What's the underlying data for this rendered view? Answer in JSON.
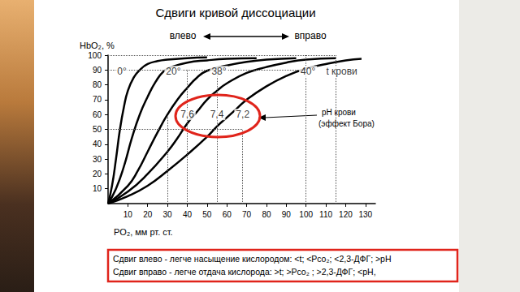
{
  "chart_data": {
    "type": "line",
    "title": "Сдвиги кривой диссоциации",
    "x_label": "PO₂, мм рт. ст.",
    "y_label": "HbO₂, %",
    "xlim": [
      0,
      135
    ],
    "xticks": [
      10,
      20,
      30,
      40,
      50,
      60,
      70,
      80,
      90,
      100,
      110,
      120,
      130
    ],
    "ylim": [
      0,
      100
    ],
    "yticks": [
      10,
      20,
      30,
      40,
      50,
      60,
      70,
      80,
      90,
      100
    ],
    "grid": false,
    "series": [
      {
        "color": "#000000",
        "x": [
          0,
          2,
          4,
          6,
          8,
          10,
          13,
          16,
          20,
          25,
          30,
          40,
          50
        ],
        "values": [
          0,
          12,
          30,
          50,
          65,
          76,
          85,
          90,
          94,
          96,
          97,
          98,
          98.5
        ]
      },
      {
        "color": "#000000",
        "x": [
          0,
          4,
          8,
          12,
          16,
          20,
          24,
          28,
          32,
          40,
          50,
          60,
          75
        ],
        "values": [
          0,
          10,
          25,
          44,
          60,
          72,
          82,
          89,
          92,
          95,
          96.5,
          97.5,
          98
        ]
      },
      {
        "color": "#000000",
        "x": [
          0,
          10,
          15,
          20,
          25,
          30,
          35,
          40,
          45,
          50,
          60,
          70,
          80,
          95
        ],
        "values": [
          0,
          12,
          22,
          35,
          48,
          60,
          70,
          78,
          85,
          89.5,
          93,
          95.5,
          97,
          98
        ]
      },
      {
        "color": "#000000",
        "x": [
          0,
          10,
          20,
          30,
          35,
          40,
          45,
          50,
          55,
          60,
          70,
          80,
          90,
          100,
          115
        ],
        "values": [
          0,
          8,
          20,
          35,
          44,
          54,
          62,
          70,
          76,
          81,
          88,
          92,
          95,
          97,
          98
        ]
      },
      {
        "color": "#000000",
        "x": [
          0,
          10,
          20,
          30,
          40,
          50,
          55,
          60,
          65,
          70,
          80,
          90,
          100,
          110,
          120,
          128
        ],
        "values": [
          0,
          5,
          12,
          22,
          33,
          45,
          52,
          58,
          64,
          70,
          79,
          86,
          91,
          94,
          96.5,
          97.5
        ]
      }
    ],
    "reference_lines": [
      [
        [
          0,
          100
        ],
        [
          115,
          100
        ]
      ],
      [
        [
          0,
          90
        ],
        [
          100,
          90
        ]
      ],
      [
        [
          0,
          50
        ],
        [
          68,
          50
        ]
      ],
      [
        [
          30,
          0
        ],
        [
          30,
          60
        ]
      ],
      [
        [
          40,
          0
        ],
        [
          40,
          90
        ]
      ],
      [
        [
          55,
          0
        ],
        [
          55,
          90
        ]
      ],
      [
        [
          68,
          0
        ],
        [
          68,
          50
        ]
      ],
      [
        [
          100,
          0
        ],
        [
          100,
          100
        ]
      ],
      [
        [
          115,
          0
        ],
        [
          115,
          100
        ]
      ]
    ],
    "annotations": [
      {
        "text": "0°",
        "x": 7,
        "y": 89
      },
      {
        "text": "20°",
        "x": 33,
        "y": 89
      },
      {
        "text": "38°",
        "x": 56,
        "y": 89
      },
      {
        "text": "40°",
        "x": 101,
        "y": 89
      },
      {
        "text": "t крови",
        "x": 118,
        "y": 89
      },
      {
        "text": "7,6",
        "x": 40,
        "y": 60
      },
      {
        "text": "7,4",
        "x": 55,
        "y": 60
      },
      {
        "text": "7,2",
        "x": 68,
        "y": 60
      }
    ],
    "shift_labels": {
      "left": "влево",
      "right": "вправо"
    },
    "callout": [
      "pH крови",
      "(эффект Бора)"
    ],
    "notes": [
      "Сдвиг влево - легче насыщение кислородом: <t; <Pco₂; <2,3-ДФГ; >pH",
      "Сдвиг вправо - легче отдача кислорода: >t; >Pco₂ ; >2,3-ДФГ; <pH,"
    ]
  }
}
